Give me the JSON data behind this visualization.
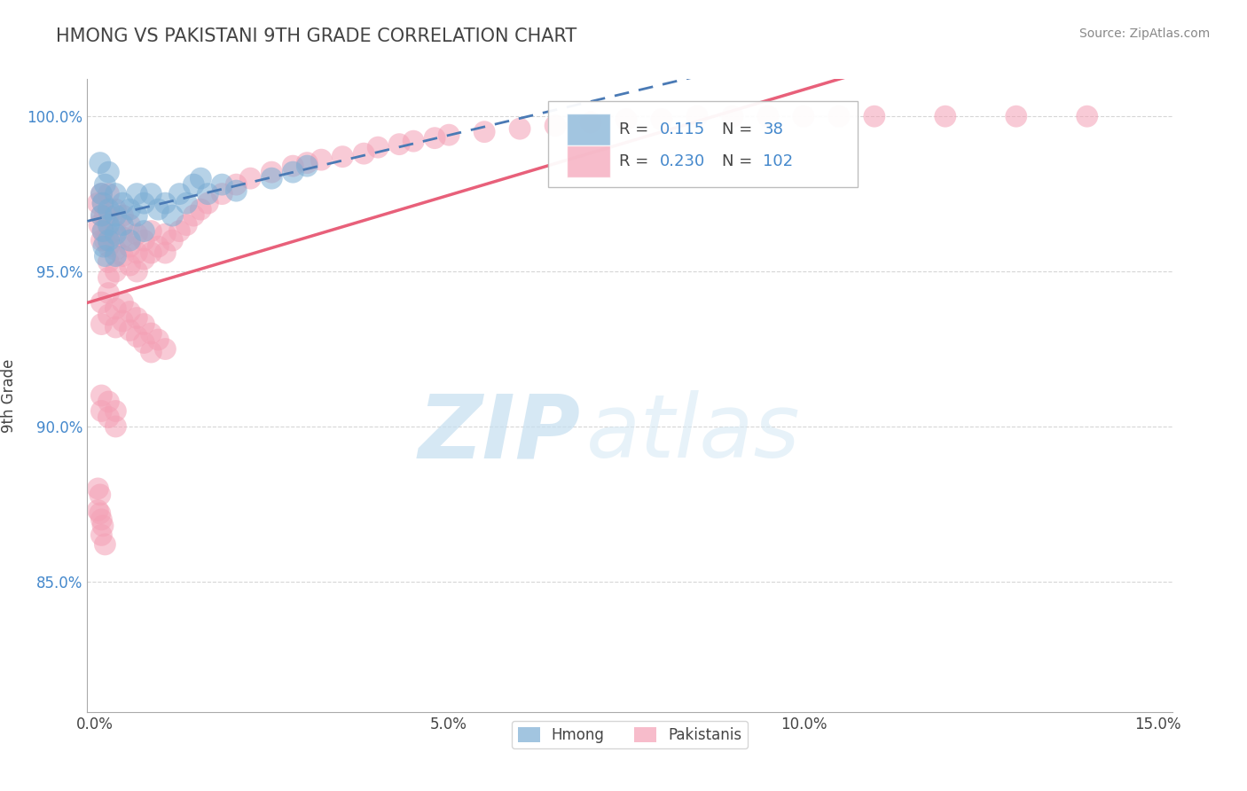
{
  "title": "HMONG VS PAKISTANI 9TH GRADE CORRELATION CHART",
  "source_text": "Source: ZipAtlas.com",
  "ylabel_text": "9th Grade",
  "xlim": [
    -0.001,
    0.152
  ],
  "ylim": [
    0.808,
    1.012
  ],
  "xticks": [
    0.0,
    0.05,
    0.1,
    0.15
  ],
  "xtick_labels": [
    "0.0%",
    "5.0%",
    "10.0%",
    "15.0%"
  ],
  "yticks": [
    0.85,
    0.9,
    0.95,
    1.0
  ],
  "ytick_labels": [
    "85.0%",
    "90.0%",
    "95.0%",
    "100.0%"
  ],
  "hmong_R": 0.115,
  "hmong_N": 38,
  "pakistani_R": 0.23,
  "pakistani_N": 102,
  "hmong_color": "#7badd4",
  "pakistani_color": "#f4a0b5",
  "hmong_line_color": "#4a7ab5",
  "pakistani_line_color": "#e8607a",
  "background_color": "#ffffff",
  "grid_color": "#cccccc",
  "watermark_zip": "ZIP",
  "watermark_atlas": "atlas",
  "title_color": "#444444",
  "source_color": "#888888",
  "ytick_color": "#4488cc",
  "xtick_color": "#444444",
  "ylabel_color": "#444444",
  "legend_label_color": "#444444",
  "legend_value_color": "#4488cc",
  "hmong_x": [
    0.0008,
    0.001,
    0.001,
    0.0012,
    0.0012,
    0.0013,
    0.0015,
    0.0015,
    0.002,
    0.002,
    0.002,
    0.002,
    0.003,
    0.003,
    0.003,
    0.003,
    0.004,
    0.004,
    0.005,
    0.005,
    0.006,
    0.006,
    0.007,
    0.007,
    0.008,
    0.009,
    0.01,
    0.011,
    0.012,
    0.013,
    0.014,
    0.015,
    0.016,
    0.018,
    0.02,
    0.025,
    0.028,
    0.03
  ],
  "hmong_y": [
    0.985,
    0.975,
    0.968,
    0.972,
    0.963,
    0.958,
    0.955,
    0.978,
    0.982,
    0.97,
    0.965,
    0.96,
    0.975,
    0.968,
    0.962,
    0.955,
    0.972,
    0.965,
    0.97,
    0.96,
    0.975,
    0.968,
    0.972,
    0.963,
    0.975,
    0.97,
    0.972,
    0.968,
    0.975,
    0.972,
    0.978,
    0.98,
    0.975,
    0.978,
    0.976,
    0.98,
    0.982,
    0.984
  ],
  "pakistani_x": [
    0.0005,
    0.0007,
    0.001,
    0.001,
    0.001,
    0.0012,
    0.0012,
    0.0015,
    0.0015,
    0.002,
    0.002,
    0.002,
    0.002,
    0.002,
    0.002,
    0.003,
    0.003,
    0.003,
    0.003,
    0.004,
    0.004,
    0.004,
    0.005,
    0.005,
    0.005,
    0.006,
    0.006,
    0.006,
    0.007,
    0.007,
    0.008,
    0.008,
    0.009,
    0.01,
    0.01,
    0.011,
    0.012,
    0.013,
    0.014,
    0.015,
    0.016,
    0.018,
    0.02,
    0.022,
    0.025,
    0.028,
    0.03,
    0.032,
    0.035,
    0.038,
    0.04,
    0.043,
    0.045,
    0.048,
    0.05,
    0.055,
    0.06,
    0.065,
    0.07,
    0.075,
    0.08,
    0.085,
    0.09,
    0.095,
    0.1,
    0.105,
    0.11,
    0.12,
    0.13,
    0.14,
    0.001,
    0.001,
    0.002,
    0.002,
    0.003,
    0.003,
    0.004,
    0.004,
    0.005,
    0.005,
    0.006,
    0.006,
    0.007,
    0.007,
    0.008,
    0.008,
    0.009,
    0.01,
    0.001,
    0.001,
    0.002,
    0.002,
    0.003,
    0.003,
    0.0005,
    0.0005,
    0.0008,
    0.0008,
    0.001,
    0.001,
    0.0012,
    0.0015
  ],
  "pakistani_y": [
    0.972,
    0.965,
    0.975,
    0.968,
    0.96,
    0.972,
    0.963,
    0.968,
    0.96,
    0.975,
    0.968,
    0.962,
    0.958,
    0.953,
    0.948,
    0.97,
    0.963,
    0.957,
    0.95,
    0.968,
    0.961,
    0.955,
    0.965,
    0.958,
    0.952,
    0.962,
    0.956,
    0.95,
    0.96,
    0.954,
    0.963,
    0.956,
    0.958,
    0.962,
    0.956,
    0.96,
    0.963,
    0.965,
    0.968,
    0.97,
    0.972,
    0.975,
    0.978,
    0.98,
    0.982,
    0.984,
    0.985,
    0.986,
    0.987,
    0.988,
    0.99,
    0.991,
    0.992,
    0.993,
    0.994,
    0.995,
    0.996,
    0.997,
    0.998,
    0.999,
    0.999,
    1.0,
    1.0,
    1.0,
    1.0,
    1.0,
    1.0,
    1.0,
    1.0,
    1.0,
    0.94,
    0.933,
    0.943,
    0.936,
    0.938,
    0.932,
    0.94,
    0.934,
    0.937,
    0.931,
    0.935,
    0.929,
    0.933,
    0.927,
    0.93,
    0.924,
    0.928,
    0.925,
    0.91,
    0.905,
    0.908,
    0.903,
    0.905,
    0.9,
    0.88,
    0.873,
    0.878,
    0.872,
    0.87,
    0.865,
    0.868,
    0.862
  ]
}
